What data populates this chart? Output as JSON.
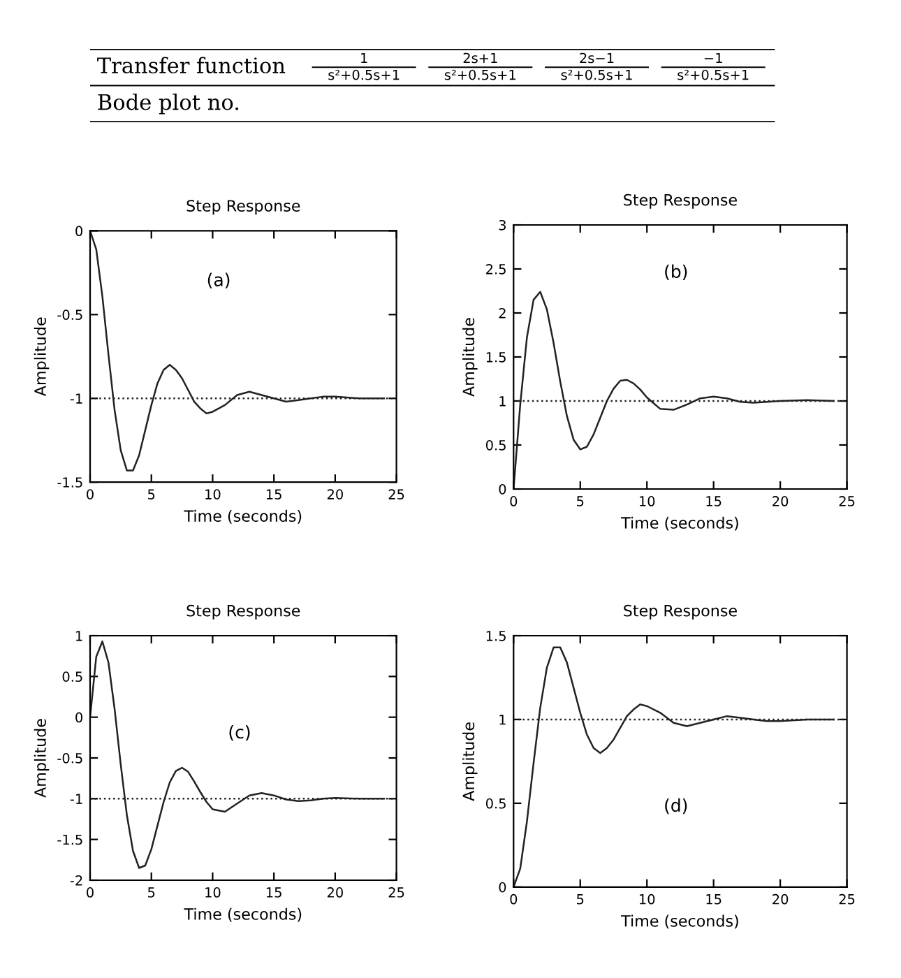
{
  "chart_data": [
    {
      "type": "other",
      "annotations": [
        "Transfer function",
        "Bode plot no.",
        "1",
        "s²+0.5s+1",
        "2s+1",
        "s²+0.5s+1",
        "2s−1",
        "s²+0.5s+1",
        "−1",
        "s²+0.5s+1"
      ]
    },
    {
      "type": "line",
      "title": "Step Response",
      "xlabel": "Time (seconds)",
      "ylabel": "Amplitude",
      "annotations": [
        "(a)"
      ],
      "x": [
        0,
        0.5,
        1,
        1.5,
        2,
        2.5,
        3,
        3.5,
        4,
        4.5,
        5,
        5.5,
        6,
        6.5,
        7,
        7.5,
        8,
        8.5,
        9,
        9.5,
        10,
        11,
        12,
        13,
        14,
        15,
        16,
        17,
        18,
        19,
        20,
        22,
        24
      ],
      "series": [
        {
          "color": "#222222",
          "values": [
            0,
            -0.11,
            -0.39,
            -0.74,
            -1.07,
            -1.31,
            -1.43,
            -1.43,
            -1.34,
            -1.19,
            -1.04,
            -0.91,
            -0.83,
            -0.8,
            -0.83,
            -0.88,
            -0.95,
            -1.02,
            -1.06,
            -1.09,
            -1.08,
            -1.04,
            -0.98,
            -0.96,
            -0.98,
            -1.0,
            -1.02,
            -1.01,
            -1.0,
            -0.99,
            -0.99,
            -1.0,
            -1.0
          ]
        }
      ],
      "ref_lines": [
        {
          "axis": "y",
          "value": -1,
          "color": "#222222",
          "line_style": "dotted"
        }
      ],
      "xlim": [
        0,
        25
      ],
      "xticks": [
        0,
        5,
        10,
        15,
        20,
        25
      ],
      "ylim": [
        -1.5,
        0
      ],
      "yticks": [
        -1.5,
        -1,
        -0.5,
        0
      ],
      "grid": false,
      "legend": false
    },
    {
      "type": "line",
      "title": "Step Response",
      "xlabel": "Time (seconds)",
      "ylabel": "Amplitude",
      "annotations": [
        "(b)"
      ],
      "x": [
        0,
        0.5,
        1,
        1.5,
        2,
        2.5,
        3,
        3.5,
        4,
        4.5,
        5,
        5.5,
        6,
        6.5,
        7,
        7.5,
        8,
        8.5,
        9,
        9.5,
        10,
        11,
        12,
        13,
        14,
        15,
        16,
        17,
        18,
        19,
        20,
        22,
        24
      ],
      "series": [
        {
          "color": "#222222",
          "values": [
            0,
            0.96,
            1.72,
            2.15,
            2.24,
            2.04,
            1.66,
            1.22,
            0.83,
            0.56,
            0.45,
            0.48,
            0.62,
            0.81,
            1.0,
            1.14,
            1.23,
            1.24,
            1.2,
            1.13,
            1.04,
            0.91,
            0.9,
            0.96,
            1.03,
            1.05,
            1.03,
            0.99,
            0.98,
            0.99,
            1.0,
            1.01,
            1.0
          ]
        }
      ],
      "ref_lines": [
        {
          "axis": "y",
          "value": 1,
          "color": "#222222",
          "line_style": "dotted"
        }
      ],
      "xlim": [
        0,
        25
      ],
      "xticks": [
        0,
        5,
        10,
        15,
        20,
        25
      ],
      "ylim": [
        0,
        3
      ],
      "yticks": [
        0,
        0.5,
        1,
        1.5,
        2,
        2.5,
        3
      ],
      "grid": false,
      "legend": false
    },
    {
      "type": "line",
      "title": "Step Response",
      "xlabel": "Time (seconds)",
      "ylabel": "Amplitude",
      "annotations": [
        "(c)"
      ],
      "x": [
        0,
        0.5,
        1,
        1.5,
        2,
        2.5,
        3,
        3.5,
        4,
        4.5,
        5,
        5.5,
        6,
        6.5,
        7,
        7.5,
        8,
        8.5,
        9,
        9.5,
        10,
        11,
        12,
        13,
        14,
        15,
        16,
        17,
        18,
        19,
        20,
        22,
        24
      ],
      "series": [
        {
          "color": "#222222",
          "values": [
            0,
            0.74,
            0.93,
            0.67,
            0.1,
            -0.58,
            -1.2,
            -1.64,
            -1.85,
            -1.82,
            -1.62,
            -1.33,
            -1.04,
            -0.8,
            -0.66,
            -0.62,
            -0.67,
            -0.79,
            -0.92,
            -1.04,
            -1.13,
            -1.16,
            -1.06,
            -0.96,
            -0.93,
            -0.96,
            -1.01,
            -1.03,
            -1.02,
            -1.0,
            -0.99,
            -1.0,
            -1.0
          ]
        }
      ],
      "ref_lines": [
        {
          "axis": "y",
          "value": -1,
          "color": "#222222",
          "line_style": "dotted"
        }
      ],
      "xlim": [
        0,
        25
      ],
      "xticks": [
        0,
        5,
        10,
        15,
        20,
        25
      ],
      "ylim": [
        -2,
        1
      ],
      "yticks": [
        -2,
        -1.5,
        -1,
        -0.5,
        0,
        0.5,
        1
      ],
      "grid": false,
      "legend": false
    },
    {
      "type": "line",
      "title": "Step Response",
      "xlabel": "Time (seconds)",
      "ylabel": "Amplitude",
      "annotations": [
        "(d)"
      ],
      "x": [
        0,
        0.5,
        1,
        1.5,
        2,
        2.5,
        3,
        3.5,
        4,
        4.5,
        5,
        5.5,
        6,
        6.5,
        7,
        7.5,
        8,
        8.5,
        9,
        9.5,
        10,
        11,
        12,
        13,
        14,
        15,
        16,
        17,
        18,
        19,
        20,
        22,
        24
      ],
      "series": [
        {
          "color": "#222222",
          "values": [
            0,
            0.11,
            0.39,
            0.74,
            1.07,
            1.31,
            1.43,
            1.43,
            1.34,
            1.19,
            1.04,
            0.91,
            0.83,
            0.8,
            0.83,
            0.88,
            0.95,
            1.02,
            1.06,
            1.09,
            1.08,
            1.04,
            0.98,
            0.96,
            0.98,
            1.0,
            1.02,
            1.01,
            1.0,
            0.99,
            0.99,
            1.0,
            1.0
          ]
        }
      ],
      "ref_lines": [
        {
          "axis": "y",
          "value": 1,
          "color": "#222222",
          "line_style": "dotted"
        }
      ],
      "xlim": [
        0,
        25
      ],
      "xticks": [
        0,
        5,
        10,
        15,
        20,
        25
      ],
      "ylim": [
        0,
        1.5
      ],
      "yticks": [
        0,
        0.5,
        1,
        1.5
      ],
      "grid": false,
      "legend": false
    }
  ]
}
